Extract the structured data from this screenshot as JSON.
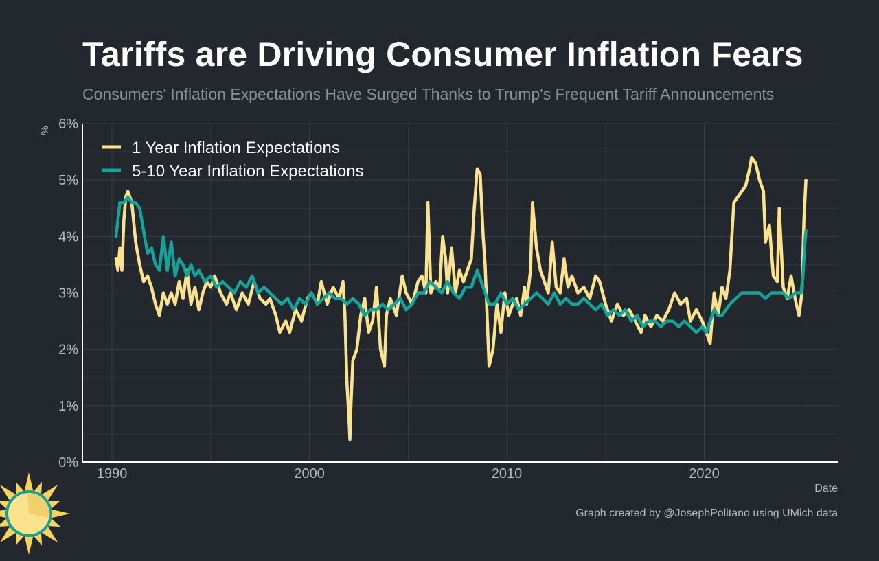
{
  "chart_data": {
    "type": "line",
    "title": "Tariffs are Driving Consumer Inflation Fears",
    "subtitle": "Consumers' Inflation Expectations Have Surged Thanks to Trump's Frequent Tariff Announcements",
    "xlabel": "Date",
    "ylabel": "%",
    "xlim": [
      1988.5,
      2026.8
    ],
    "ylim": [
      0,
      6
    ],
    "x_ticks": [
      "1990",
      "2000",
      "2010",
      "2020"
    ],
    "y_ticks": [
      "0%",
      "1%",
      "2%",
      "3%",
      "4%",
      "5%",
      "6%"
    ],
    "grid": true,
    "legend_position": "top-left",
    "series": [
      {
        "name": "1 Year Inflation Expectations",
        "color": "#fbe38e",
        "points": [
          [
            1990.2,
            3.6
          ],
          [
            1990.3,
            3.4
          ],
          [
            1990.4,
            3.8
          ],
          [
            1990.5,
            3.4
          ],
          [
            1990.6,
            4.3
          ],
          [
            1990.7,
            4.7
          ],
          [
            1990.8,
            4.8
          ],
          [
            1990.9,
            4.7
          ],
          [
            1991.0,
            4.6
          ],
          [
            1991.2,
            3.9
          ],
          [
            1991.4,
            3.5
          ],
          [
            1991.6,
            3.2
          ],
          [
            1991.8,
            3.3
          ],
          [
            1992.0,
            3.1
          ],
          [
            1992.2,
            2.8
          ],
          [
            1992.4,
            2.6
          ],
          [
            1992.6,
            3.0
          ],
          [
            1992.8,
            2.8
          ],
          [
            1993.0,
            3.0
          ],
          [
            1993.2,
            2.8
          ],
          [
            1993.4,
            3.2
          ],
          [
            1993.6,
            2.9
          ],
          [
            1993.8,
            3.4
          ],
          [
            1994.0,
            2.8
          ],
          [
            1994.2,
            3.1
          ],
          [
            1994.4,
            2.7
          ],
          [
            1994.6,
            3.0
          ],
          [
            1994.8,
            3.2
          ],
          [
            1995.0,
            3.1
          ],
          [
            1995.2,
            3.3
          ],
          [
            1995.5,
            3.0
          ],
          [
            1995.8,
            2.8
          ],
          [
            1996.0,
            3.0
          ],
          [
            1996.3,
            2.7
          ],
          [
            1996.6,
            3.0
          ],
          [
            1996.9,
            2.8
          ],
          [
            1997.2,
            3.2
          ],
          [
            1997.5,
            2.9
          ],
          [
            1997.8,
            2.8
          ],
          [
            1998.0,
            2.9
          ],
          [
            1998.3,
            2.6
          ],
          [
            1998.5,
            2.3
          ],
          [
            1998.8,
            2.5
          ],
          [
            1999.0,
            2.3
          ],
          [
            1999.3,
            2.7
          ],
          [
            1999.6,
            2.5
          ],
          [
            1999.9,
            2.9
          ],
          [
            2000.1,
            3.0
          ],
          [
            2000.4,
            2.8
          ],
          [
            2000.6,
            3.2
          ],
          [
            2000.9,
            2.8
          ],
          [
            2001.2,
            3.1
          ],
          [
            2001.5,
            2.9
          ],
          [
            2001.7,
            3.2
          ],
          [
            2001.8,
            2.6
          ],
          [
            2001.9,
            1.4
          ],
          [
            2002.0,
            0.8
          ],
          [
            2002.05,
            0.4
          ],
          [
            2002.1,
            1.0
          ],
          [
            2002.2,
            1.8
          ],
          [
            2002.4,
            2.0
          ],
          [
            2002.6,
            2.6
          ],
          [
            2002.8,
            2.9
          ],
          [
            2003.0,
            2.3
          ],
          [
            2003.2,
            2.5
          ],
          [
            2003.4,
            3.1
          ],
          [
            2003.6,
            2.0
          ],
          [
            2003.8,
            1.7
          ],
          [
            2003.9,
            2.6
          ],
          [
            2004.1,
            2.9
          ],
          [
            2004.4,
            2.6
          ],
          [
            2004.7,
            3.3
          ],
          [
            2004.9,
            3.0
          ],
          [
            2005.2,
            2.8
          ],
          [
            2005.5,
            3.2
          ],
          [
            2005.7,
            3.3
          ],
          [
            2005.9,
            3.0
          ],
          [
            2006.0,
            4.6
          ],
          [
            2006.15,
            3.0
          ],
          [
            2006.4,
            3.2
          ],
          [
            2006.6,
            3.1
          ],
          [
            2006.75,
            4.0
          ],
          [
            2006.9,
            3.6
          ],
          [
            2007.0,
            3.0
          ],
          [
            2007.2,
            3.8
          ],
          [
            2007.4,
            3.0
          ],
          [
            2007.6,
            3.4
          ],
          [
            2007.8,
            3.2
          ],
          [
            2008.0,
            3.4
          ],
          [
            2008.2,
            3.6
          ],
          [
            2008.35,
            4.5
          ],
          [
            2008.5,
            5.2
          ],
          [
            2008.65,
            5.1
          ],
          [
            2008.8,
            4.0
          ],
          [
            2008.9,
            3.5
          ],
          [
            2009.0,
            2.6
          ],
          [
            2009.1,
            1.7
          ],
          [
            2009.3,
            2.0
          ],
          [
            2009.5,
            2.8
          ],
          [
            2009.7,
            2.3
          ],
          [
            2009.9,
            3.0
          ],
          [
            2010.1,
            2.6
          ],
          [
            2010.3,
            2.8
          ],
          [
            2010.5,
            2.9
          ],
          [
            2010.7,
            2.6
          ],
          [
            2010.9,
            3.1
          ],
          [
            2011.0,
            2.8
          ],
          [
            2011.2,
            3.4
          ],
          [
            2011.3,
            4.6
          ],
          [
            2011.5,
            3.8
          ],
          [
            2011.7,
            3.4
          ],
          [
            2011.9,
            3.2
          ],
          [
            2012.1,
            3.0
          ],
          [
            2012.3,
            3.9
          ],
          [
            2012.5,
            3.1
          ],
          [
            2012.7,
            3.0
          ],
          [
            2012.9,
            3.6
          ],
          [
            2013.1,
            3.1
          ],
          [
            2013.3,
            3.3
          ],
          [
            2013.6,
            3.0
          ],
          [
            2013.9,
            3.1
          ],
          [
            2014.2,
            2.9
          ],
          [
            2014.5,
            3.3
          ],
          [
            2014.7,
            3.2
          ],
          [
            2015.0,
            2.8
          ],
          [
            2015.3,
            2.5
          ],
          [
            2015.6,
            2.8
          ],
          [
            2015.9,
            2.6
          ],
          [
            2016.2,
            2.7
          ],
          [
            2016.5,
            2.5
          ],
          [
            2016.8,
            2.3
          ],
          [
            2017.0,
            2.6
          ],
          [
            2017.3,
            2.4
          ],
          [
            2017.6,
            2.6
          ],
          [
            2017.9,
            2.5
          ],
          [
            2018.2,
            2.7
          ],
          [
            2018.5,
            3.0
          ],
          [
            2018.8,
            2.8
          ],
          [
            2019.1,
            2.9
          ],
          [
            2019.3,
            2.5
          ],
          [
            2019.6,
            2.7
          ],
          [
            2019.9,
            2.5
          ],
          [
            2020.1,
            2.3
          ],
          [
            2020.3,
            2.1
          ],
          [
            2020.5,
            3.0
          ],
          [
            2020.7,
            2.6
          ],
          [
            2020.9,
            3.1
          ],
          [
            2021.1,
            2.9
          ],
          [
            2021.3,
            3.4
          ],
          [
            2021.5,
            4.6
          ],
          [
            2021.7,
            4.7
          ],
          [
            2021.9,
            4.8
          ],
          [
            2022.1,
            4.9
          ],
          [
            2022.3,
            5.2
          ],
          [
            2022.4,
            5.4
          ],
          [
            2022.6,
            5.3
          ],
          [
            2022.8,
            5.0
          ],
          [
            2023.0,
            4.8
          ],
          [
            2023.1,
            3.9
          ],
          [
            2023.3,
            4.2
          ],
          [
            2023.5,
            3.3
          ],
          [
            2023.7,
            3.2
          ],
          [
            2023.8,
            4.5
          ],
          [
            2024.0,
            3.1
          ],
          [
            2024.2,
            2.9
          ],
          [
            2024.4,
            3.3
          ],
          [
            2024.6,
            2.9
          ],
          [
            2024.8,
            2.6
          ],
          [
            2024.95,
            3.0
          ],
          [
            2025.05,
            4.3
          ],
          [
            2025.15,
            5.0
          ]
        ]
      },
      {
        "name": "5-10 Year Inflation Expectations",
        "color": "#14a398",
        "points": [
          [
            1990.2,
            4.0
          ],
          [
            1990.4,
            4.6
          ],
          [
            1990.6,
            4.6
          ],
          [
            1990.8,
            4.7
          ],
          [
            1991.0,
            4.6
          ],
          [
            1991.2,
            4.6
          ],
          [
            1991.4,
            4.5
          ],
          [
            1991.6,
            4.1
          ],
          [
            1991.8,
            3.7
          ],
          [
            1992.0,
            3.8
          ],
          [
            1992.2,
            3.5
          ],
          [
            1992.4,
            3.4
          ],
          [
            1992.6,
            4.0
          ],
          [
            1992.8,
            3.4
          ],
          [
            1993.0,
            3.9
          ],
          [
            1993.2,
            3.3
          ],
          [
            1993.4,
            3.6
          ],
          [
            1993.6,
            3.5
          ],
          [
            1993.8,
            3.3
          ],
          [
            1994.0,
            3.5
          ],
          [
            1994.2,
            3.3
          ],
          [
            1994.4,
            3.4
          ],
          [
            1994.7,
            3.2
          ],
          [
            1995.0,
            3.3
          ],
          [
            1995.3,
            3.1
          ],
          [
            1995.6,
            3.2
          ],
          [
            1995.9,
            3.1
          ],
          [
            1996.2,
            3.0
          ],
          [
            1996.5,
            3.2
          ],
          [
            1996.8,
            3.1
          ],
          [
            1997.1,
            3.3
          ],
          [
            1997.4,
            3.0
          ],
          [
            1997.7,
            3.1
          ],
          [
            1998.0,
            3.0
          ],
          [
            1998.3,
            2.9
          ],
          [
            1998.6,
            2.8
          ],
          [
            1998.9,
            2.9
          ],
          [
            1999.2,
            2.7
          ],
          [
            1999.5,
            2.9
          ],
          [
            1999.8,
            2.8
          ],
          [
            2000.1,
            3.0
          ],
          [
            2000.4,
            2.8
          ],
          [
            2000.7,
            2.9
          ],
          [
            2001.0,
            3.0
          ],
          [
            2001.3,
            2.9
          ],
          [
            2001.6,
            2.9
          ],
          [
            2001.9,
            2.8
          ],
          [
            2002.2,
            2.9
          ],
          [
            2002.5,
            2.8
          ],
          [
            2002.8,
            2.6
          ],
          [
            2003.1,
            2.7
          ],
          [
            2003.4,
            2.7
          ],
          [
            2003.7,
            2.8
          ],
          [
            2004.0,
            2.7
          ],
          [
            2004.3,
            2.8
          ],
          [
            2004.6,
            2.9
          ],
          [
            2004.9,
            2.7
          ],
          [
            2005.2,
            2.8
          ],
          [
            2005.5,
            3.0
          ],
          [
            2005.8,
            3.0
          ],
          [
            2006.1,
            3.2
          ],
          [
            2006.4,
            3.1
          ],
          [
            2006.7,
            3.0
          ],
          [
            2007.0,
            3.2
          ],
          [
            2007.3,
            3.0
          ],
          [
            2007.6,
            2.9
          ],
          [
            2007.9,
            3.1
          ],
          [
            2008.2,
            3.1
          ],
          [
            2008.5,
            3.4
          ],
          [
            2008.8,
            3.1
          ],
          [
            2009.1,
            2.8
          ],
          [
            2009.4,
            2.8
          ],
          [
            2009.7,
            3.0
          ],
          [
            2010.0,
            2.8
          ],
          [
            2010.3,
            2.9
          ],
          [
            2010.6,
            2.7
          ],
          [
            2010.9,
            2.8
          ],
          [
            2011.2,
            2.9
          ],
          [
            2011.5,
            3.0
          ],
          [
            2011.8,
            2.9
          ],
          [
            2012.1,
            2.8
          ],
          [
            2012.4,
            3.0
          ],
          [
            2012.7,
            2.8
          ],
          [
            2013.0,
            2.9
          ],
          [
            2013.3,
            2.8
          ],
          [
            2013.6,
            2.8
          ],
          [
            2013.9,
            2.9
          ],
          [
            2014.2,
            2.8
          ],
          [
            2014.5,
            2.7
          ],
          [
            2014.8,
            2.8
          ],
          [
            2015.1,
            2.6
          ],
          [
            2015.4,
            2.7
          ],
          [
            2015.7,
            2.6
          ],
          [
            2016.0,
            2.7
          ],
          [
            2016.3,
            2.5
          ],
          [
            2016.6,
            2.6
          ],
          [
            2016.9,
            2.4
          ],
          [
            2017.2,
            2.5
          ],
          [
            2017.5,
            2.5
          ],
          [
            2017.8,
            2.4
          ],
          [
            2018.1,
            2.5
          ],
          [
            2018.4,
            2.5
          ],
          [
            2018.7,
            2.4
          ],
          [
            2019.0,
            2.5
          ],
          [
            2019.3,
            2.4
          ],
          [
            2019.6,
            2.3
          ],
          [
            2019.9,
            2.4
          ],
          [
            2020.1,
            2.3
          ],
          [
            2020.3,
            2.5
          ],
          [
            2020.5,
            2.7
          ],
          [
            2020.7,
            2.6
          ],
          [
            2020.9,
            2.6
          ],
          [
            2021.1,
            2.7
          ],
          [
            2021.3,
            2.8
          ],
          [
            2021.6,
            2.9
          ],
          [
            2021.9,
            3.0
          ],
          [
            2022.2,
            3.0
          ],
          [
            2022.5,
            3.0
          ],
          [
            2022.8,
            3.0
          ],
          [
            2023.1,
            2.9
          ],
          [
            2023.4,
            3.0
          ],
          [
            2023.7,
            3.0
          ],
          [
            2024.0,
            3.0
          ],
          [
            2024.3,
            2.9
          ],
          [
            2024.6,
            3.0
          ],
          [
            2024.9,
            3.0
          ],
          [
            2025.0,
            3.3
          ],
          [
            2025.1,
            3.9
          ],
          [
            2025.15,
            4.1
          ]
        ]
      }
    ]
  },
  "credit": "Graph created by @JosephPolitano using UMich data",
  "colors": {
    "background": "#23272e",
    "grid": "#3a3f47",
    "axis": "#ffffff",
    "tick_text": "#b5bac1",
    "title": "#ffffff",
    "subtitle": "#8b9098"
  },
  "logo_icon": "sun-icon"
}
